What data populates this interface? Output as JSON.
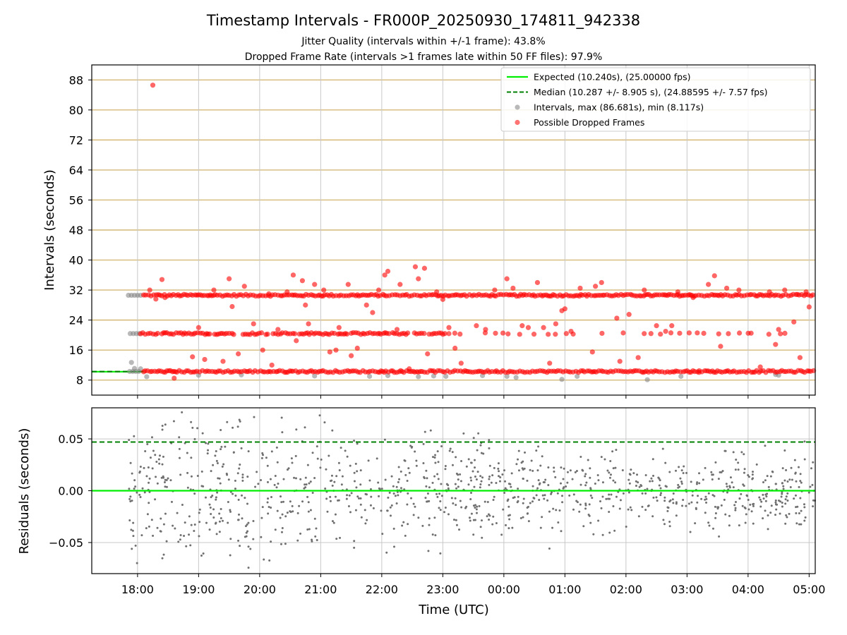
{
  "chart_data": [
    {
      "type": "scatter",
      "title": "Timestamp Intervals - FR000P_20250930_174811_942338",
      "subtitle_lines": [
        "Jitter Quality (intervals within +/-1 frame): 43.8%",
        "Dropped Frame Rate (intervals >1 frames late within 50 FF files): 97.9%"
      ],
      "xlabel": "",
      "ylabel": "Intervals (seconds)",
      "xlim_hours": [
        17.25,
        29.1
      ],
      "ylim": [
        4,
        92
      ],
      "yticks": [
        8,
        16,
        24,
        32,
        40,
        48,
        56,
        64,
        72,
        80,
        88
      ],
      "ytick_labels": [
        "8",
        "16",
        "24",
        "32",
        "40",
        "48",
        "56",
        "64",
        "72",
        "80",
        "88"
      ],
      "grid": true,
      "legend_position": "top-right",
      "legend": [
        {
          "label": "Expected (10.240s), (25.00000 fps)",
          "style": "line",
          "color": "#00ee00"
        },
        {
          "label": "Median (10.287 +/- 8.905 s), (24.88595 +/- 7.57 fps)",
          "style": "dashed",
          "color": "#008000"
        },
        {
          "label": "Intervals, max (86.681s), min (8.117s)",
          "style": "marker",
          "color": "#808080"
        },
        {
          "label": "Possible Dropped Frames",
          "style": "marker",
          "color": "#ff0000"
        }
      ],
      "series": [
        {
          "name": "Expected",
          "type": "hline",
          "value": 10.24,
          "x_range_hours": [
            17.25,
            18.1
          ],
          "color": "#00ee00"
        },
        {
          "name": "Median",
          "type": "hline",
          "value": 10.287,
          "x_range_hours": [
            17.25,
            18.1
          ],
          "color": "#008000"
        },
        {
          "name": "Intervals",
          "color": "#808080",
          "x_hours": [
            17.85,
            17.9,
            17.95,
            18.0,
            18.05,
            17.88,
            17.93,
            17.98,
            18.03,
            17.87,
            17.92,
            17.97,
            18.02,
            17.9,
            18.05,
            17.95,
            18.15,
            19.0,
            19.7,
            20.9,
            21.8,
            22.1,
            22.6,
            22.85,
            23.05,
            23.65,
            24.05,
            24.2,
            24.95,
            25.2,
            26.35,
            26.9,
            28.45,
            28.5
          ],
          "values": [
            30.6,
            30.6,
            30.6,
            30.6,
            30.6,
            20.4,
            20.4,
            20.4,
            20.4,
            10.3,
            10.3,
            10.3,
            10.3,
            12.7,
            11.0,
            11.1,
            8.9,
            9.3,
            9.4,
            9.1,
            9.0,
            9.2,
            8.9,
            9.1,
            9.0,
            9.2,
            9.0,
            8.7,
            8.2,
            9.0,
            8.1,
            9.0,
            9.5,
            9.3
          ]
        },
        {
          "name": "Possible Dropped Frames",
          "color": "#ff0000",
          "bands": [
            {
              "value": 30.6,
              "x_from_hours": 18.1,
              "x_to_hours": 29.1
            },
            {
              "value": 20.4,
              "x_from_hours": 18.05,
              "x_to_hours": 23.1
            },
            {
              "value": 10.3,
              "x_from_hours": 18.1,
              "x_to_hours": 29.1
            }
          ],
          "x_hours": [
            18.25,
            18.4,
            18.2,
            18.45,
            18.3,
            18.9,
            19.0,
            19.25,
            19.5,
            19.55,
            19.65,
            19.75,
            19.9,
            20.05,
            20.15,
            20.3,
            20.45,
            20.55,
            20.7,
            20.75,
            20.8,
            20.9,
            21.05,
            21.15,
            21.3,
            21.45,
            21.6,
            21.75,
            21.85,
            21.95,
            22.05,
            22.1,
            22.3,
            22.55,
            22.6,
            22.7,
            22.75,
            22.9,
            23.0,
            23.1,
            23.2,
            23.55,
            23.7,
            23.85,
            24.05,
            24.15,
            24.3,
            24.55,
            24.65,
            24.85,
            24.95,
            25.0,
            25.1,
            25.25,
            25.5,
            25.6,
            25.85,
            26.05,
            26.3,
            26.5,
            26.65,
            26.85,
            27.1,
            27.35,
            27.45,
            27.65,
            27.85,
            28.05,
            28.35,
            28.45,
            28.5,
            28.6,
            28.85,
            28.95,
            29.0,
            18.6,
            19.4,
            20.2,
            21.5,
            22.45,
            23.3,
            24.4,
            25.9,
            27.2,
            28.2,
            19.1,
            20.6,
            21.25,
            22.25,
            24.75,
            25.45,
            26.2,
            26.75,
            27.55,
            28.75
          ],
          "values": [
            86.6,
            34.8,
            32.0,
            30.0,
            29.6,
            14.2,
            22.0,
            32.0,
            35.0,
            27.6,
            15.0,
            33.0,
            23.0,
            16.0,
            31.0,
            21.5,
            31.5,
            36.0,
            34.5,
            28.0,
            23.0,
            33.5,
            32.0,
            15.5,
            22.0,
            33.5,
            16.5,
            28.0,
            26.0,
            32.0,
            36.0,
            37.0,
            33.5,
            38.2,
            35.0,
            37.8,
            15.0,
            31.5,
            29.5,
            22.0,
            16.5,
            22.5,
            21.5,
            32.0,
            35.0,
            32.5,
            22.5,
            34.0,
            22.0,
            23.0,
            26.5,
            27.0,
            21.0,
            32.5,
            33.0,
            34.0,
            24.5,
            25.5,
            32.0,
            22.5,
            21.0,
            31.5,
            30.0,
            33.5,
            35.8,
            32.5,
            32.0,
            20.5,
            31.5,
            17.5,
            21.5,
            32.0,
            14.0,
            31.5,
            27.5,
            8.5,
            13.0,
            12.0,
            14.5,
            11.0,
            12.5,
            22.0,
            13.0,
            10.5,
            11.5,
            13.5,
            18.5,
            16.0,
            21.5,
            12.5,
            15.5,
            14.0,
            22.5,
            17.0,
            23.5
          ]
        }
      ]
    },
    {
      "type": "scatter",
      "xlabel": "Time (UTC)",
      "ylabel": "Residuals (seconds)",
      "xlim_hours": [
        17.25,
        29.1
      ],
      "ylim": [
        -0.08,
        0.08
      ],
      "yticks": [
        -0.05,
        0.0,
        0.05
      ],
      "ytick_labels": [
        "−0.05",
        "0.00",
        "0.05"
      ],
      "xticks_hours": [
        18,
        19,
        20,
        21,
        22,
        23,
        24,
        25,
        26,
        27,
        28,
        29
      ],
      "xtick_labels": [
        "18:00",
        "19:00",
        "20:00",
        "21:00",
        "22:00",
        "23:00",
        "00:00",
        "01:00",
        "02:00",
        "03:00",
        "04:00",
        "05:00"
      ],
      "grid": true,
      "series": [
        {
          "name": "Median residual",
          "type": "hline",
          "value": 0.047,
          "color": "#008000"
        },
        {
          "name": "Expected residual",
          "type": "hline",
          "value": 0.0,
          "color": "#00ee00"
        },
        {
          "name": "Residuals",
          "color": "#707070",
          "description_stats": {
            "x_from_hours": 17.85,
            "x_to_hours": 29.1,
            "center": 0.0,
            "spread_early": 0.04,
            "spread_late": 0.018,
            "count": 1100
          }
        }
      ]
    }
  ]
}
